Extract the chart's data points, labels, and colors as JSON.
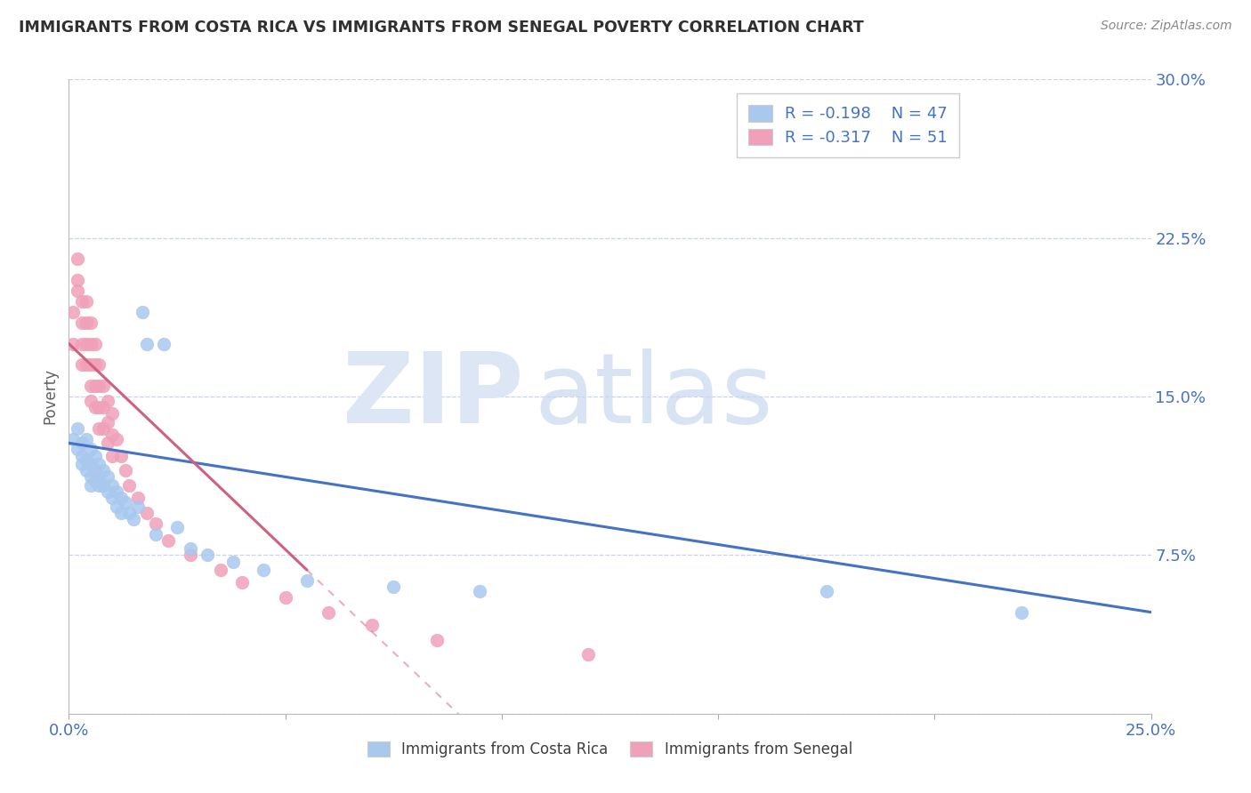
{
  "title": "IMMIGRANTS FROM COSTA RICA VS IMMIGRANTS FROM SENEGAL POVERTY CORRELATION CHART",
  "source": "Source: ZipAtlas.com",
  "ylabel": "Poverty",
  "xlim": [
    0.0,
    0.25
  ],
  "ylim": [
    0.0,
    0.3
  ],
  "xticks": [
    0.0,
    0.05,
    0.1,
    0.15,
    0.2,
    0.25
  ],
  "yticks": [
    0.0,
    0.075,
    0.15,
    0.225,
    0.3
  ],
  "color_blue": "#a8c8ee",
  "color_pink": "#f0a0b8",
  "color_blue_dark": "#4472c4",
  "color_pink_dark": "#d06080",
  "legend_text_color": "#4472c4",
  "title_color": "#303030",
  "axis_color": "#4472c4",
  "grid_color": "#c8d4e8",
  "costa_rica_x": [
    0.001,
    0.002,
    0.002,
    0.003,
    0.003,
    0.003,
    0.004,
    0.004,
    0.004,
    0.005,
    0.005,
    0.005,
    0.005,
    0.006,
    0.006,
    0.006,
    0.007,
    0.007,
    0.007,
    0.008,
    0.008,
    0.009,
    0.009,
    0.01,
    0.01,
    0.011,
    0.011,
    0.012,
    0.012,
    0.013,
    0.014,
    0.015,
    0.016,
    0.017,
    0.018,
    0.02,
    0.022,
    0.025,
    0.028,
    0.032,
    0.038,
    0.045,
    0.055,
    0.075,
    0.095,
    0.175,
    0.22
  ],
  "costa_rica_y": [
    0.13,
    0.125,
    0.135,
    0.128,
    0.122,
    0.118,
    0.13,
    0.12,
    0.115,
    0.125,
    0.118,
    0.112,
    0.108,
    0.122,
    0.115,
    0.11,
    0.118,
    0.112,
    0.108,
    0.115,
    0.108,
    0.112,
    0.105,
    0.108,
    0.102,
    0.105,
    0.098,
    0.102,
    0.095,
    0.1,
    0.095,
    0.092,
    0.098,
    0.19,
    0.175,
    0.085,
    0.175,
    0.088,
    0.078,
    0.075,
    0.072,
    0.068,
    0.063,
    0.06,
    0.058,
    0.058,
    0.048
  ],
  "senegal_x": [
    0.001,
    0.001,
    0.002,
    0.002,
    0.002,
    0.003,
    0.003,
    0.003,
    0.003,
    0.004,
    0.004,
    0.004,
    0.004,
    0.005,
    0.005,
    0.005,
    0.005,
    0.005,
    0.006,
    0.006,
    0.006,
    0.006,
    0.007,
    0.007,
    0.007,
    0.007,
    0.008,
    0.008,
    0.008,
    0.009,
    0.009,
    0.009,
    0.01,
    0.01,
    0.01,
    0.011,
    0.012,
    0.013,
    0.014,
    0.016,
    0.018,
    0.02,
    0.023,
    0.028,
    0.035,
    0.04,
    0.05,
    0.06,
    0.07,
    0.085,
    0.12
  ],
  "senegal_y": [
    0.175,
    0.19,
    0.2,
    0.215,
    0.205,
    0.195,
    0.185,
    0.175,
    0.165,
    0.195,
    0.185,
    0.175,
    0.165,
    0.185,
    0.175,
    0.165,
    0.155,
    0.148,
    0.175,
    0.165,
    0.155,
    0.145,
    0.165,
    0.155,
    0.145,
    0.135,
    0.155,
    0.145,
    0.135,
    0.148,
    0.138,
    0.128,
    0.142,
    0.132,
    0.122,
    0.13,
    0.122,
    0.115,
    0.108,
    0.102,
    0.095,
    0.09,
    0.082,
    0.075,
    0.068,
    0.062,
    0.055,
    0.048,
    0.042,
    0.035,
    0.028
  ],
  "blue_trend_x0": 0.0,
  "blue_trend_y0": 0.128,
  "blue_trend_x1": 0.25,
  "blue_trend_y1": 0.048,
  "pink_trend_x0": 0.0,
  "pink_trend_y0": 0.175,
  "pink_trend_x1": 0.055,
  "pink_trend_y1": 0.068,
  "watermark_zip_color": "#dce6f4",
  "watermark_atlas_color": "#c8d8f0"
}
